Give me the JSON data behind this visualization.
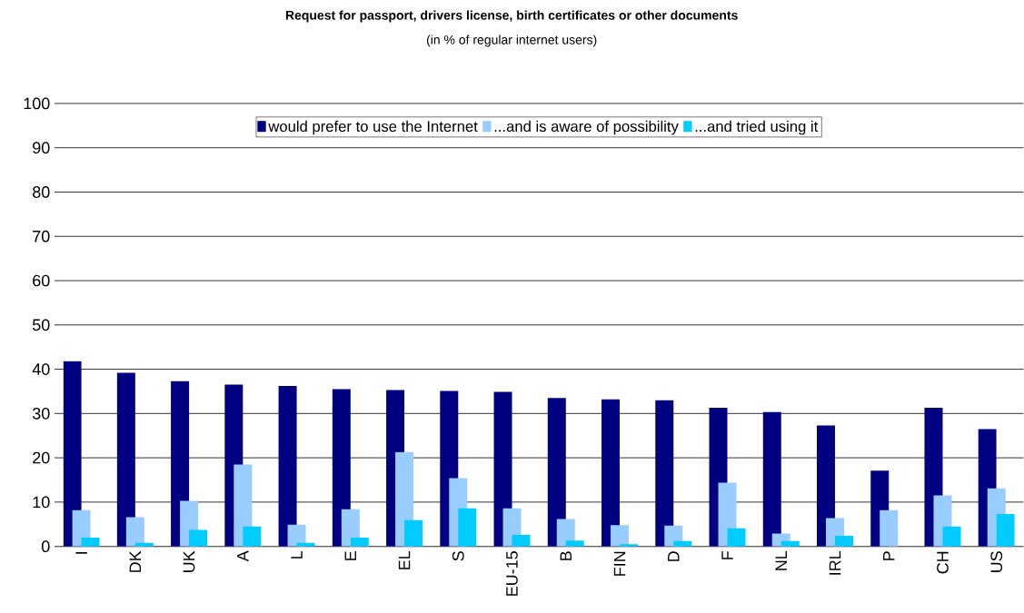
{
  "chart_data": {
    "type": "bar",
    "title": "Request for passport, drivers license, birth certificates or other documents",
    "subtitle": "(in % of regular internet users)",
    "categories": [
      "I",
      "DK",
      "UK",
      "A",
      "L",
      "E",
      "EL",
      "S",
      "EU-15",
      "B",
      "FIN",
      "D",
      "F",
      "NL",
      "IRL",
      "P",
      "CH",
      "US"
    ],
    "series": [
      {
        "name": "would prefer to use the Internet",
        "color": "#000080",
        "values": [
          41.8,
          39.2,
          37.3,
          36.5,
          36.2,
          35.5,
          35.3,
          35.1,
          34.9,
          33.5,
          33.2,
          33.0,
          31.3,
          30.3,
          27.3,
          17.1,
          31.3,
          26.5
        ]
      },
      {
        "name": "...and is aware of possibility",
        "color": "#99ccff",
        "values": [
          8.2,
          6.6,
          10.3,
          18.5,
          4.9,
          8.4,
          21.3,
          15.4,
          8.6,
          6.2,
          4.8,
          4.7,
          14.4,
          2.9,
          6.4,
          8.2,
          11.5,
          13.1
        ]
      },
      {
        "name": "...and tried using it",
        "color": "#00ccff",
        "values": [
          2.0,
          0.8,
          3.7,
          4.5,
          0.8,
          2.0,
          5.9,
          8.6,
          2.6,
          1.3,
          0.5,
          1.2,
          4.1,
          1.2,
          2.4,
          null,
          4.5,
          7.3
        ]
      }
    ],
    "ylim": [
      0,
      100
    ],
    "yticks": [
      0,
      10,
      20,
      30,
      40,
      50,
      60,
      70,
      80,
      90,
      100
    ],
    "grid": "y",
    "legend": "top"
  }
}
